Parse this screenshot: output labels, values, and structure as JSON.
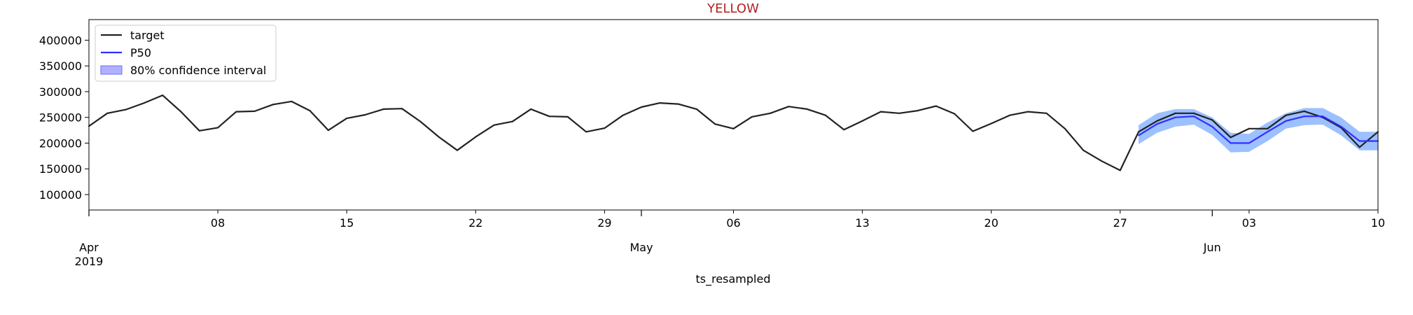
{
  "chart_data": {
    "type": "line",
    "title": "YELLOW",
    "xlabel": "ts_resampled",
    "ylabel": "",
    "ylim": [
      70000,
      440000
    ],
    "xlim": [
      "2019-04-01",
      "2019-06-10"
    ],
    "grid": false,
    "legend": {
      "placement": "top-left",
      "entries": [
        {
          "label": "target",
          "color": "#222222",
          "kind": "line"
        },
        {
          "label": "P50",
          "color": "#3030ff",
          "kind": "line"
        },
        {
          "label": "80% confidence interval",
          "color": "#b0b0ff",
          "kind": "patch"
        }
      ]
    },
    "y_ticks": [
      100000,
      150000,
      200000,
      250000,
      300000,
      350000,
      400000
    ],
    "y_tick_labels": [
      "100000",
      "150000",
      "200000",
      "250000",
      "300000",
      "350000",
      "400000"
    ],
    "x_minor_ticks": [
      {
        "date": "2019-04-08",
        "label": "08"
      },
      {
        "date": "2019-04-15",
        "label": "15"
      },
      {
        "date": "2019-04-22",
        "label": "22"
      },
      {
        "date": "2019-04-29",
        "label": "29"
      },
      {
        "date": "2019-05-06",
        "label": "06"
      },
      {
        "date": "2019-05-13",
        "label": "13"
      },
      {
        "date": "2019-05-20",
        "label": "20"
      },
      {
        "date": "2019-05-27",
        "label": "27"
      },
      {
        "date": "2019-06-03",
        "label": "03"
      },
      {
        "date": "2019-06-10",
        "label": "10"
      }
    ],
    "x_major_ticks": [
      {
        "date": "2019-04-01",
        "label": "Apr",
        "sublabel": "2019"
      },
      {
        "date": "2019-05-01",
        "label": "May",
        "sublabel": ""
      },
      {
        "date": "2019-06-01",
        "label": "Jun",
        "sublabel": ""
      }
    ],
    "series": [
      {
        "name": "target",
        "color": "#222222",
        "x": [
          "2019-04-01",
          "2019-04-02",
          "2019-04-03",
          "2019-04-04",
          "2019-04-05",
          "2019-04-06",
          "2019-04-07",
          "2019-04-08",
          "2019-04-09",
          "2019-04-10",
          "2019-04-11",
          "2019-04-12",
          "2019-04-13",
          "2019-04-14",
          "2019-04-15",
          "2019-04-16",
          "2019-04-17",
          "2019-04-18",
          "2019-04-19",
          "2019-04-20",
          "2019-04-21",
          "2019-04-22",
          "2019-04-23",
          "2019-04-24",
          "2019-04-25",
          "2019-04-26",
          "2019-04-27",
          "2019-04-28",
          "2019-04-29",
          "2019-04-30",
          "2019-05-01",
          "2019-05-02",
          "2019-05-03",
          "2019-05-04",
          "2019-05-05",
          "2019-05-06",
          "2019-05-07",
          "2019-05-08",
          "2019-05-09",
          "2019-05-10",
          "2019-05-11",
          "2019-05-12",
          "2019-05-13",
          "2019-05-14",
          "2019-05-15",
          "2019-05-16",
          "2019-05-17",
          "2019-05-18",
          "2019-05-19",
          "2019-05-20",
          "2019-05-21",
          "2019-05-22",
          "2019-05-23",
          "2019-05-24",
          "2019-05-25",
          "2019-05-26",
          "2019-05-27",
          "2019-05-28",
          "2019-05-29",
          "2019-05-30",
          "2019-05-31",
          "2019-06-01",
          "2019-06-02",
          "2019-06-03",
          "2019-06-04",
          "2019-06-05",
          "2019-06-06",
          "2019-06-07",
          "2019-06-08",
          "2019-06-09",
          "2019-06-10"
        ],
        "values": [
          233000,
          258000,
          265000,
          278000,
          293000,
          261000,
          224000,
          230000,
          261000,
          262000,
          275000,
          281000,
          263000,
          225000,
          248000,
          255000,
          266000,
          267000,
          242000,
          212000,
          186000,
          212000,
          235000,
          242000,
          266000,
          252000,
          251000,
          222000,
          229000,
          254000,
          270000,
          278000,
          276000,
          266000,
          237000,
          228000,
          251000,
          258000,
          271000,
          266000,
          254000,
          226000,
          243000,
          261000,
          258000,
          263000,
          272000,
          257000,
          223000,
          238000,
          254000,
          261000,
          258000,
          228000,
          186000,
          165000,
          147000,
          222000,
          243000,
          258000,
          258000,
          245000,
          211000,
          228000,
          228000,
          254000,
          262000,
          250000,
          230000,
          192000,
          222000
        ]
      },
      {
        "name": "P50",
        "color": "#3030ff",
        "x": [
          "2019-05-28",
          "2019-05-29",
          "2019-05-30",
          "2019-05-31",
          "2019-06-01",
          "2019-06-02",
          "2019-06-03",
          "2019-06-04",
          "2019-06-05",
          "2019-06-06",
          "2019-06-07",
          "2019-06-08",
          "2019-06-09",
          "2019-06-10"
        ],
        "values": [
          215000,
          237000,
          250000,
          252000,
          232000,
          200000,
          200000,
          222000,
          243000,
          252000,
          252000,
          232000,
          204000,
          204000
        ]
      }
    ],
    "confidence_interval": {
      "name": "80% confidence interval",
      "color": "#4d8cff",
      "x": [
        "2019-05-28",
        "2019-05-29",
        "2019-05-30",
        "2019-05-31",
        "2019-06-01",
        "2019-06-02",
        "2019-06-03",
        "2019-06-04",
        "2019-06-05",
        "2019-06-06",
        "2019-06-07",
        "2019-06-08",
        "2019-06-09",
        "2019-06-10"
      ],
      "lower": [
        198000,
        220000,
        232000,
        236000,
        216000,
        182000,
        183000,
        204000,
        228000,
        235000,
        236000,
        215000,
        186000,
        186000
      ],
      "upper": [
        235000,
        258000,
        266000,
        266000,
        250000,
        220000,
        218000,
        240000,
        258000,
        268000,
        268000,
        250000,
        222000,
        222000
      ]
    }
  }
}
